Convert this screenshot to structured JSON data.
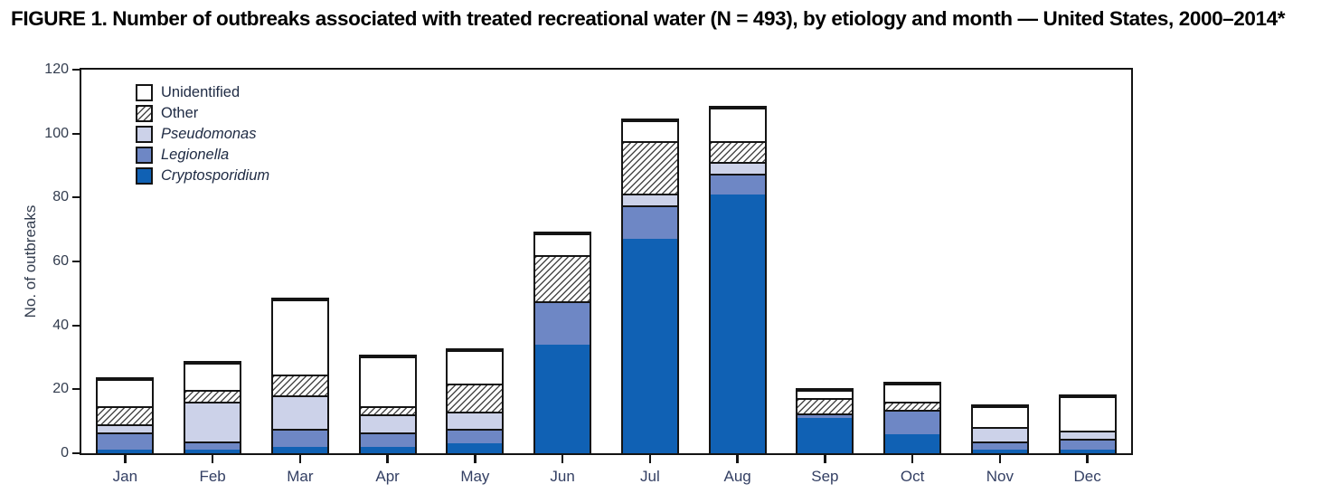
{
  "figure": {
    "title": "FIGURE 1. Number of outbreaks associated with treated recreational water (N = 493), by etiology and month — United States, 2000–2014*"
  },
  "chart_data": {
    "type": "bar",
    "stacked": true,
    "title": "FIGURE 1. Number of outbreaks associated with treated recreational water (N = 493), by etiology and month — United States, 2000–2014*",
    "xlabel": "",
    "ylabel": "No. of outbreaks",
    "ylim": [
      0,
      120
    ],
    "yticks": [
      0,
      20,
      40,
      60,
      80,
      100,
      120
    ],
    "grid": false,
    "n_total": 493,
    "categories": [
      "Jan",
      "Feb",
      "Mar",
      "Apr",
      "May",
      "Jun",
      "Jul",
      "Aug",
      "Sep",
      "Oct",
      "Nov",
      "Dec"
    ],
    "series_bottom_to_top": [
      {
        "name": "Cryptosporidium",
        "italic": true,
        "color": "#1061b4",
        "pattern": "solid",
        "values": [
          1,
          1,
          2,
          2,
          3,
          34,
          67,
          81,
          11,
          6,
          1,
          1
        ]
      },
      {
        "name": "Legionella",
        "italic": true,
        "color": "#6e87c5",
        "pattern": "solid",
        "values": [
          5,
          2,
          5,
          4,
          4,
          13,
          10,
          6,
          1,
          7,
          2,
          3
        ]
      },
      {
        "name": "Pseudomonas",
        "italic": true,
        "color": "#ccd2e9",
        "pattern": "solid",
        "values": [
          2,
          12,
          10,
          5,
          5,
          0,
          3,
          3,
          0,
          0,
          4,
          2
        ]
      },
      {
        "name": "Other",
        "italic": false,
        "color": "#ffffff",
        "pattern": "hatch",
        "values": [
          5,
          3,
          6,
          2,
          8,
          14,
          16,
          6,
          4,
          2,
          0,
          0
        ]
      },
      {
        "name": "Unidentified",
        "italic": false,
        "color": "#ffffff",
        "pattern": "solid",
        "values": [
          8,
          8,
          23,
          15,
          10,
          6,
          6,
          10,
          2,
          5,
          6,
          10
        ]
      }
    ],
    "monthly_totals": [
      21,
      26,
      46,
      28,
      30,
      67,
      102,
      106,
      18,
      20,
      13,
      16
    ],
    "legend": {
      "position": "top-left-inside",
      "order_top_to_bottom": [
        "Unidentified",
        "Other",
        "Pseudomonas",
        "Legionella",
        "Cryptosporidium"
      ]
    },
    "frame_color": "#141414",
    "background_color": "#ffffff"
  }
}
